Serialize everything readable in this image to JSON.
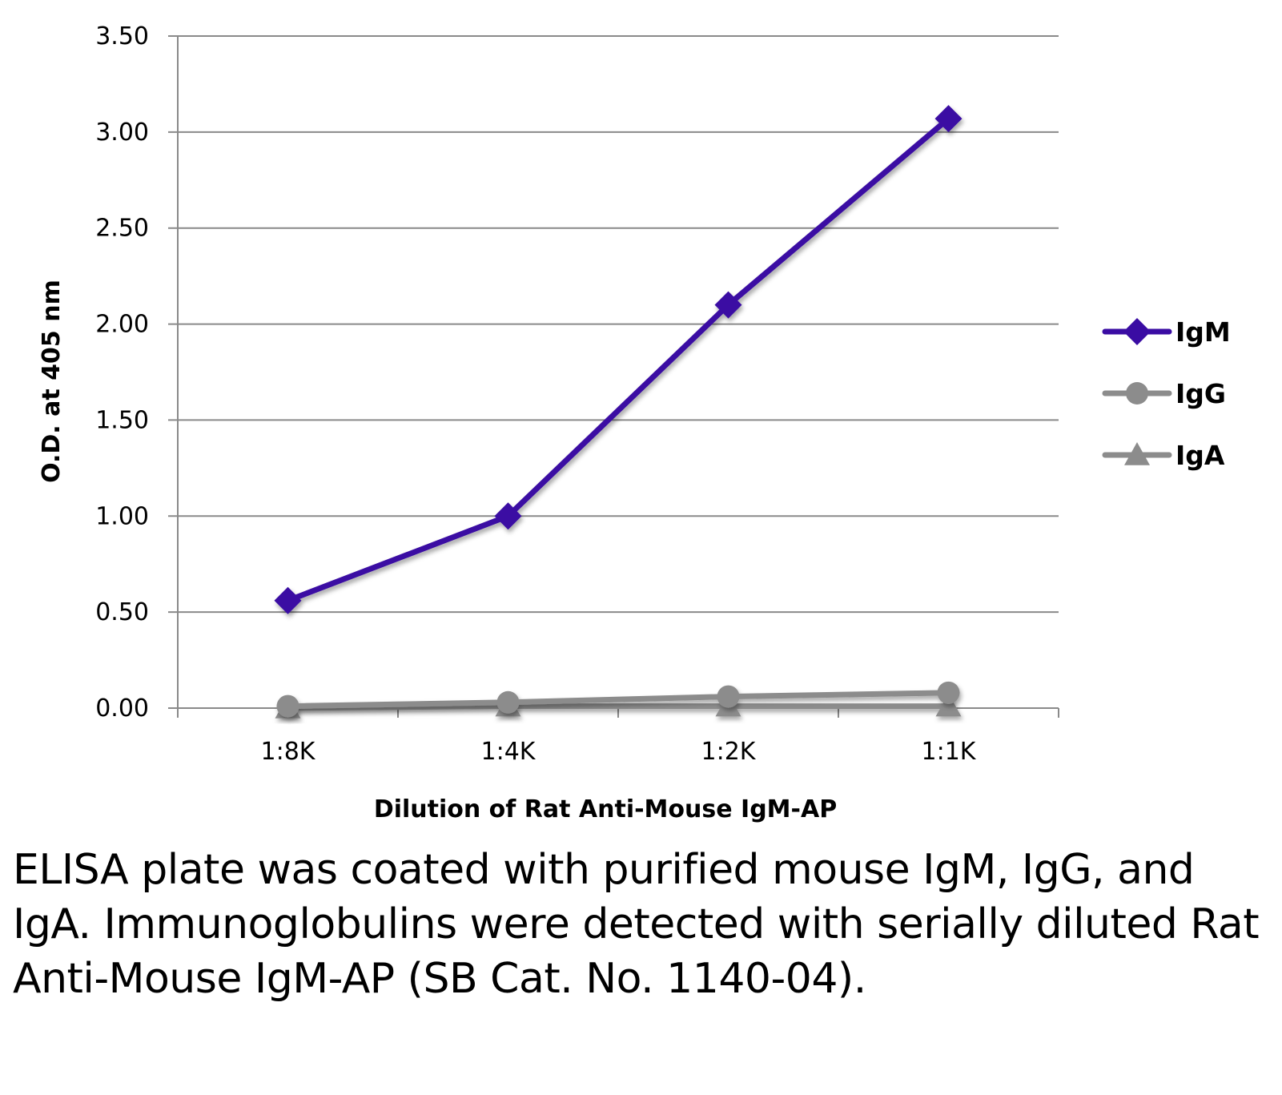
{
  "chart_data": {
    "type": "line",
    "title": "",
    "xlabel": "Dilution of Rat Anti-Mouse IgM-AP",
    "ylabel": "O.D. at 405 nm",
    "categories": [
      "1:8K",
      "1:4K",
      "1:2K",
      "1:1K"
    ],
    "ylim": [
      0,
      3.5
    ],
    "yticks": [
      "0.00",
      "0.50",
      "1.00",
      "1.50",
      "2.00",
      "2.50",
      "3.00",
      "3.50"
    ],
    "grid": "horizontal",
    "legend_position": "right",
    "series": [
      {
        "name": "IgM",
        "marker": "diamond",
        "color": "#3a0ca3",
        "values": [
          0.56,
          1.0,
          2.1,
          3.07
        ]
      },
      {
        "name": "IgG",
        "marker": "circle",
        "color": "#8c8c8c",
        "values": [
          0.01,
          0.03,
          0.06,
          0.08
        ]
      },
      {
        "name": "IgA",
        "marker": "triangle",
        "color": "#8c8c8c",
        "values": [
          0.0,
          0.01,
          0.01,
          0.01
        ]
      }
    ]
  },
  "caption": "ELISA plate was coated with purified mouse IgM, IgG, and IgA.  Immunoglobulins were detected with serially diluted Rat Anti-Mouse IgM-AP (SB Cat. No. 1140-04)."
}
